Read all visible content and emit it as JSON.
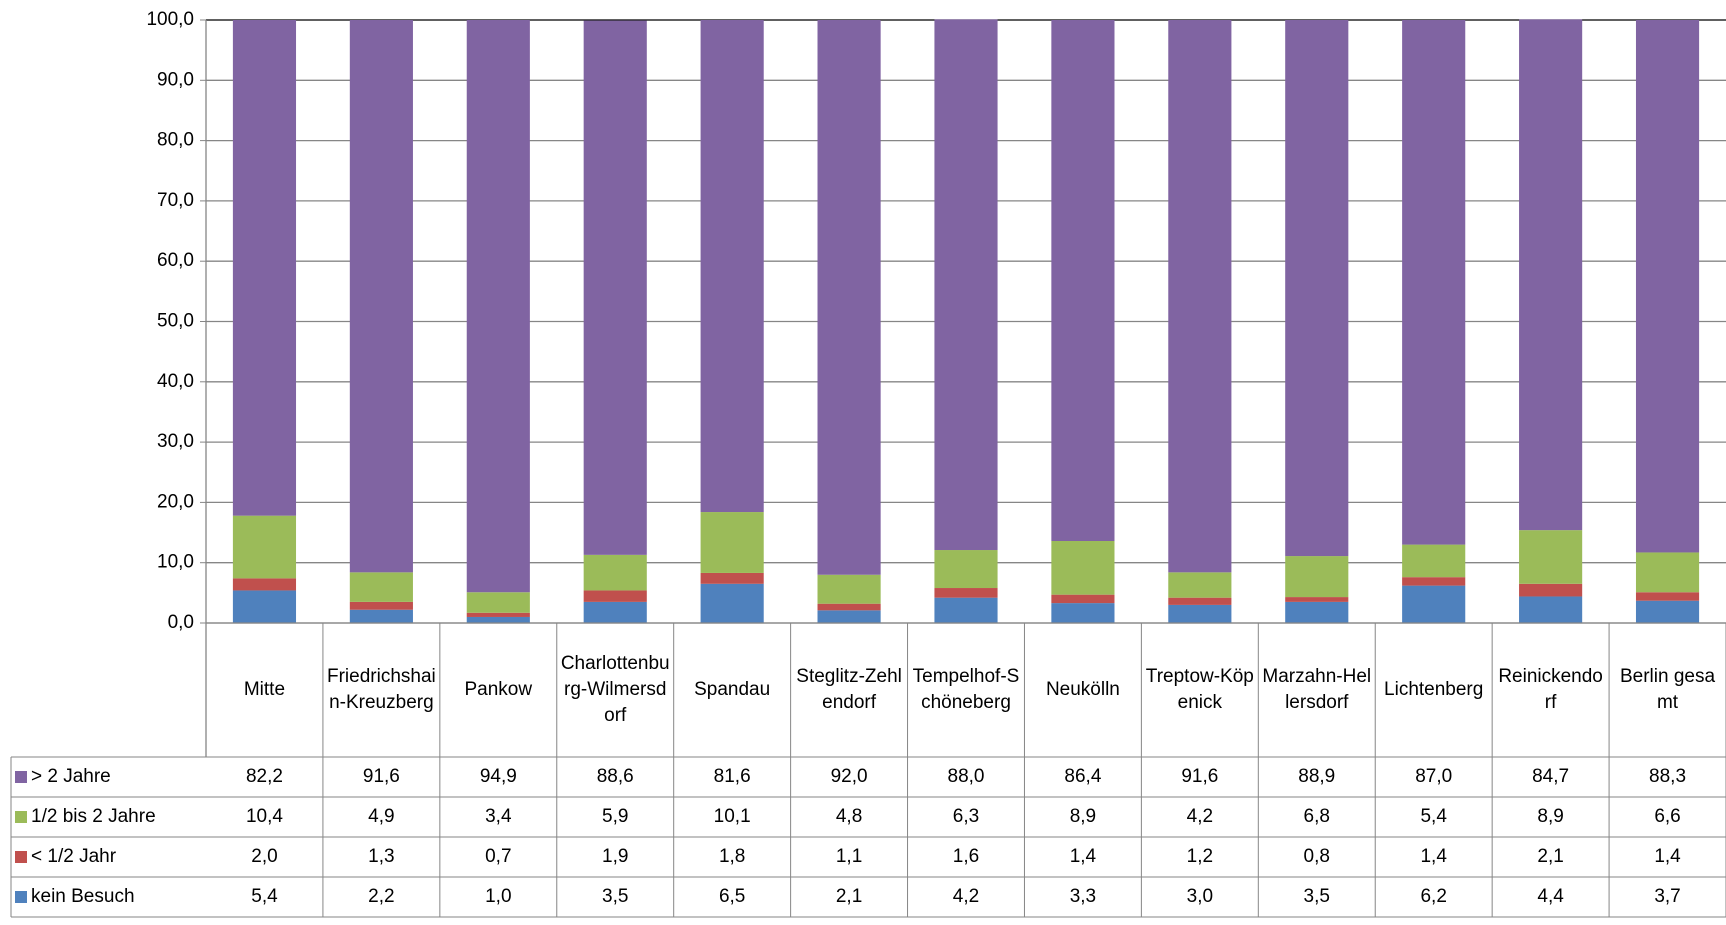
{
  "chart_data": {
    "type": "stacked_bar",
    "categories": [
      "Mitte",
      "Friedrichshain-Kreuzberg",
      "Pankow",
      "Charlottenburg-Wilmersdorf",
      "Spandau",
      "Steglitz-Zehlendorf",
      "Tempelhof-Schöneberg",
      "Neukölln",
      "Treptow-Köpenick",
      "Marzahn-Hellersdorf",
      "Lichtenberg",
      "Reinickendorf",
      "Berlin gesamt"
    ],
    "series": [
      {
        "name": "> 2 Jahre",
        "color": "#8064a2",
        "values": [
          82.2,
          91.6,
          94.9,
          88.6,
          81.6,
          92.0,
          88.0,
          86.4,
          91.6,
          88.9,
          87.0,
          84.7,
          88.3
        ],
        "value_labels": [
          "82,2",
          "91,6",
          "94,9",
          "88,6",
          "81,6",
          "92,0",
          "88,0",
          "86,4",
          "91,6",
          "88,9",
          "87,0",
          "84,7",
          "88,3"
        ]
      },
      {
        "name": "1/2 bis 2 Jahre",
        "color": "#9bbb59",
        "values": [
          10.4,
          4.9,
          3.4,
          5.9,
          10.1,
          4.8,
          6.3,
          8.9,
          4.2,
          6.8,
          5.4,
          8.9,
          6.6
        ],
        "value_labels": [
          "10,4",
          "4,9",
          "3,4",
          "5,9",
          "10,1",
          "4,8",
          "6,3",
          "8,9",
          "4,2",
          "6,8",
          "5,4",
          "8,9",
          "6,6"
        ]
      },
      {
        "name": "< 1/2 Jahr",
        "color": "#c0504d",
        "values": [
          2.0,
          1.3,
          0.7,
          1.9,
          1.8,
          1.1,
          1.6,
          1.4,
          1.2,
          0.8,
          1.4,
          2.1,
          1.4
        ],
        "value_labels": [
          "2,0",
          "1,3",
          "0,7",
          "1,9",
          "1,8",
          "1,1",
          "1,6",
          "1,4",
          "1,2",
          "0,8",
          "1,4",
          "2,1",
          "1,4"
        ]
      },
      {
        "name": "kein Besuch",
        "color": "#4f81bd",
        "values": [
          5.4,
          2.2,
          1.0,
          3.5,
          6.5,
          2.1,
          4.2,
          3.3,
          3.0,
          3.5,
          6.2,
          4.4,
          3.7
        ],
        "value_labels": [
          "5,4",
          "2,2",
          "1,0",
          "3,5",
          "6,5",
          "2,1",
          "4,2",
          "3,3",
          "3,0",
          "3,5",
          "6,2",
          "4,4",
          "3,7"
        ]
      }
    ],
    "ylim": [
      0,
      100
    ],
    "yticks": [
      {
        "value": 0,
        "label": "0,0"
      },
      {
        "value": 10,
        "label": "10,0"
      },
      {
        "value": 20,
        "label": "20,0"
      },
      {
        "value": 30,
        "label": "30,0"
      },
      {
        "value": 40,
        "label": "40,0"
      },
      {
        "value": 50,
        "label": "50,0"
      },
      {
        "value": 60,
        "label": "60,0"
      },
      {
        "value": 70,
        "label": "70,0"
      },
      {
        "value": 80,
        "label": "80,0"
      },
      {
        "value": 90,
        "label": "90,0"
      },
      {
        "value": 100,
        "label": "100,0"
      }
    ],
    "grid": true
  }
}
